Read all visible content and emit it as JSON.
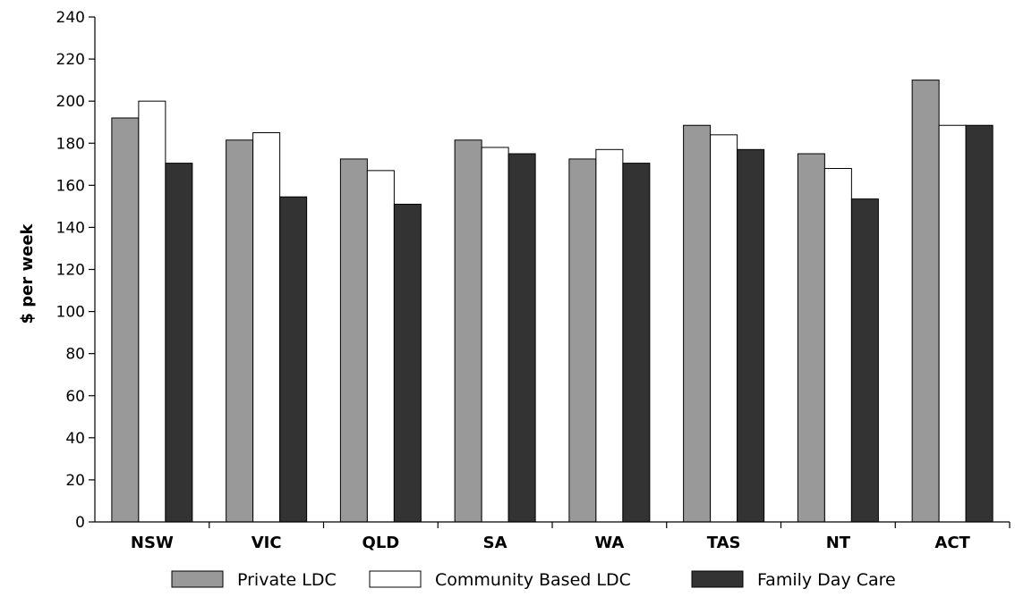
{
  "chart_data": {
    "type": "bar",
    "ylabel": "$ per week",
    "ylim": [
      0,
      240
    ],
    "yticks": [
      0,
      20,
      40,
      60,
      80,
      100,
      120,
      140,
      160,
      180,
      200,
      220,
      240
    ],
    "categories": [
      "NSW",
      "VIC",
      "QLD",
      "SA",
      "WA",
      "TAS",
      "NT",
      "ACT"
    ],
    "series": [
      {
        "name": "Private LDC",
        "color": "#999999",
        "values": [
          192,
          181.5,
          172.5,
          181.5,
          172.5,
          188.5,
          175,
          210
        ]
      },
      {
        "name": "Community Based LDC",
        "color": "#ffffff",
        "values": [
          200,
          185,
          167,
          178,
          177,
          184,
          168,
          188.5
        ]
      },
      {
        "name": "Family Day Care",
        "color": "#333333",
        "values": [
          170.5,
          154.5,
          151,
          175,
          170.5,
          177,
          153.5,
          188.5
        ]
      }
    ],
    "grid": false,
    "legend": "bottom"
  }
}
